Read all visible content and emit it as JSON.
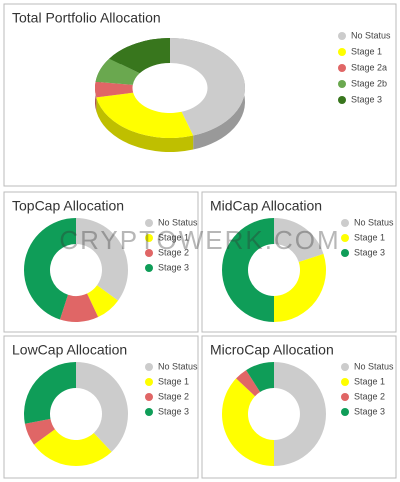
{
  "watermark": "CRYPTOWERK.COM",
  "chart_data": [
    {
      "type": "donut",
      "three_d": true,
      "title": "Total Portfolio Allocation",
      "legend": "right",
      "categories": [
        "No Status",
        "Stage 1",
        "Stage 2a",
        "Stage 2b",
        "Stage 3"
      ],
      "values": [
        45,
        27,
        5,
        8,
        15
      ],
      "colors": [
        "#cccccc",
        "#ffff00",
        "#e06666",
        "#6aa84f",
        "#38761d"
      ]
    },
    {
      "type": "donut",
      "title": "TopCap Allocation",
      "legend": "right",
      "categories": [
        "No Status",
        "Stage 1",
        "Stage 2",
        "Stage 3"
      ],
      "values": [
        35,
        8,
        12,
        45
      ],
      "colors": [
        "#cccccc",
        "#ffff00",
        "#e06666",
        "#0f9d58"
      ]
    },
    {
      "type": "donut",
      "title": "MidCap Allocation",
      "legend": "right",
      "categories": [
        "No Status",
        "Stage 1",
        "Stage 3"
      ],
      "values": [
        20,
        30,
        50
      ],
      "colors": [
        "#cccccc",
        "#ffff00",
        "#0f9d58"
      ]
    },
    {
      "type": "donut",
      "title": "LowCap Allocation",
      "legend": "right",
      "categories": [
        "No Status",
        "Stage 1",
        "Stage 2",
        "Stage 3"
      ],
      "values": [
        38,
        27,
        7,
        28
      ],
      "colors": [
        "#cccccc",
        "#ffff00",
        "#e06666",
        "#0f9d58"
      ]
    },
    {
      "type": "donut",
      "title": "MicroCap Allocation",
      "legend": "right",
      "categories": [
        "No Status",
        "Stage 1",
        "Stage 2",
        "Stage 3"
      ],
      "values": [
        50,
        37,
        4,
        9
      ],
      "colors": [
        "#cccccc",
        "#ffff00",
        "#e06666",
        "#0f9d58"
      ]
    }
  ]
}
